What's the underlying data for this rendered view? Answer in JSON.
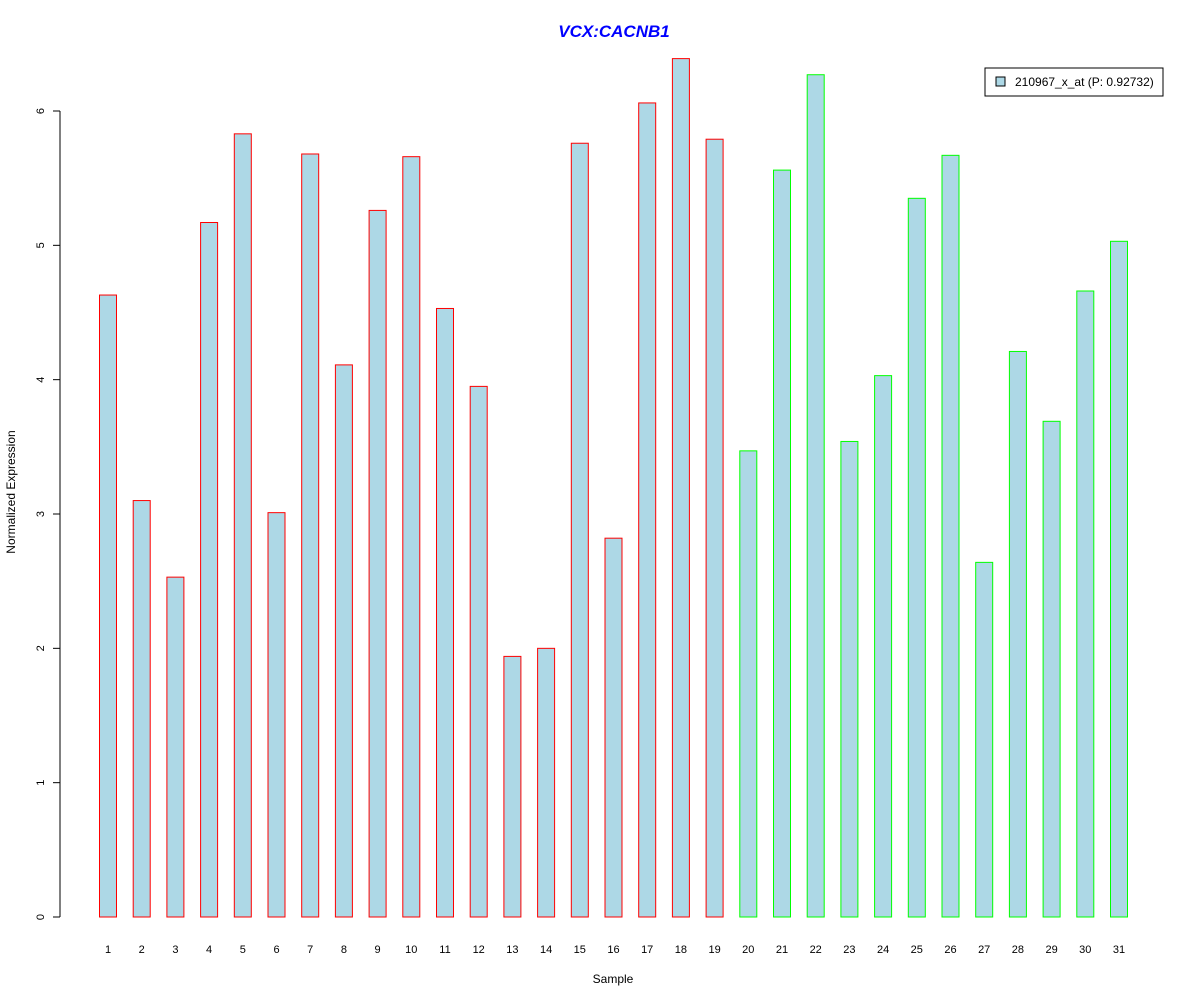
{
  "chart_data": {
    "type": "bar",
    "title": "VCX:CACNB1",
    "xlabel": "Sample",
    "ylabel": "Normalized Expression",
    "ylim": [
      0,
      6
    ],
    "yticks": [
      0,
      1,
      2,
      3,
      4,
      5,
      6
    ],
    "categories": [
      "1",
      "2",
      "3",
      "4",
      "5",
      "6",
      "7",
      "8",
      "9",
      "10",
      "11",
      "12",
      "13",
      "14",
      "15",
      "16",
      "17",
      "18",
      "19",
      "20",
      "21",
      "22",
      "23",
      "24",
      "25",
      "26",
      "27",
      "28",
      "29",
      "30",
      "31"
    ],
    "values": [
      4.63,
      3.1,
      2.53,
      5.17,
      5.83,
      3.01,
      5.68,
      4.11,
      5.26,
      5.66,
      4.53,
      3.95,
      1.94,
      2.0,
      5.76,
      2.82,
      6.06,
      6.39,
      5.79,
      3.47,
      5.56,
      6.27,
      3.54,
      4.03,
      5.35,
      5.67,
      2.64,
      4.21,
      3.69,
      4.66,
      5.03
    ],
    "groups": [
      "red",
      "red",
      "red",
      "red",
      "red",
      "red",
      "red",
      "red",
      "red",
      "red",
      "red",
      "red",
      "red",
      "red",
      "red",
      "red",
      "red",
      "red",
      "red",
      "green",
      "green",
      "green",
      "green",
      "green",
      "green",
      "green",
      "green",
      "green",
      "green",
      "green",
      "green"
    ],
    "colors": {
      "fill": "#add8e6",
      "red": "#ff0000",
      "green": "#00ff00",
      "title": "#0000ff"
    },
    "legend": {
      "label": "210967_x_at (P: 0.92732)",
      "position": "top-right"
    },
    "grid": false
  }
}
